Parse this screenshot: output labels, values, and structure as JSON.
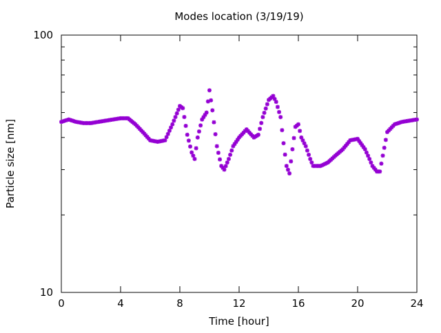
{
  "chart_data": {
    "type": "scatter",
    "title": "Modes location (3/19/19)",
    "xlabel": "Time [hour]",
    "ylabel": "Particle size [nm]",
    "xlim": [
      0,
      24
    ],
    "ylim": [
      10,
      100
    ],
    "y_scale": "log",
    "x_ticks": [
      0,
      4,
      8,
      12,
      16,
      20,
      24
    ],
    "x_tick_labels": [
      "0",
      "4",
      "8",
      "12",
      "16",
      "20",
      "24"
    ],
    "y_ticks": [
      10,
      100
    ],
    "y_tick_labels": [
      "10",
      "100"
    ],
    "grid": false,
    "legend": "none",
    "marker": "star",
    "marker_color": "#9400d3",
    "series": [
      {
        "x": [
          0,
          0.5,
          1,
          1.5,
          2,
          2.5,
          3,
          3.5,
          4,
          4.5,
          5,
          5.5,
          6,
          6.5,
          7,
          7.5,
          8,
          8.2,
          8.5,
          8.8,
          9,
          9.2,
          9.5,
          9.8,
          10,
          10.2,
          10.5,
          10.8,
          11,
          11.3,
          11.6,
          12,
          12.5,
          13,
          13.3,
          13.6,
          14,
          14.3,
          14.5,
          14.8,
          15,
          15.2,
          15.4,
          15.6,
          15.8,
          16,
          16.2,
          16.5,
          16.8,
          17,
          17.5,
          18,
          18.5,
          19,
          19.5,
          20,
          20.5,
          20.8,
          21,
          21.3,
          21.5,
          21.7,
          22,
          22.5,
          23,
          23.5,
          24
        ],
        "y": [
          46,
          47,
          46,
          45.5,
          45.5,
          46,
          46.5,
          47,
          47.5,
          47.5,
          45,
          42,
          39,
          38.5,
          39,
          45,
          53,
          52,
          41,
          35,
          33,
          40,
          47,
          50,
          61,
          51,
          37,
          31,
          30,
          33,
          37,
          40,
          43,
          40,
          41,
          48,
          56,
          58,
          55,
          48,
          38,
          31,
          29,
          36,
          44,
          45,
          40,
          37,
          33,
          31,
          31,
          32,
          34,
          36,
          39,
          39.5,
          36,
          33,
          31,
          29.5,
          29.5,
          34,
          42,
          45,
          46,
          46.5,
          47
        ]
      }
    ]
  }
}
